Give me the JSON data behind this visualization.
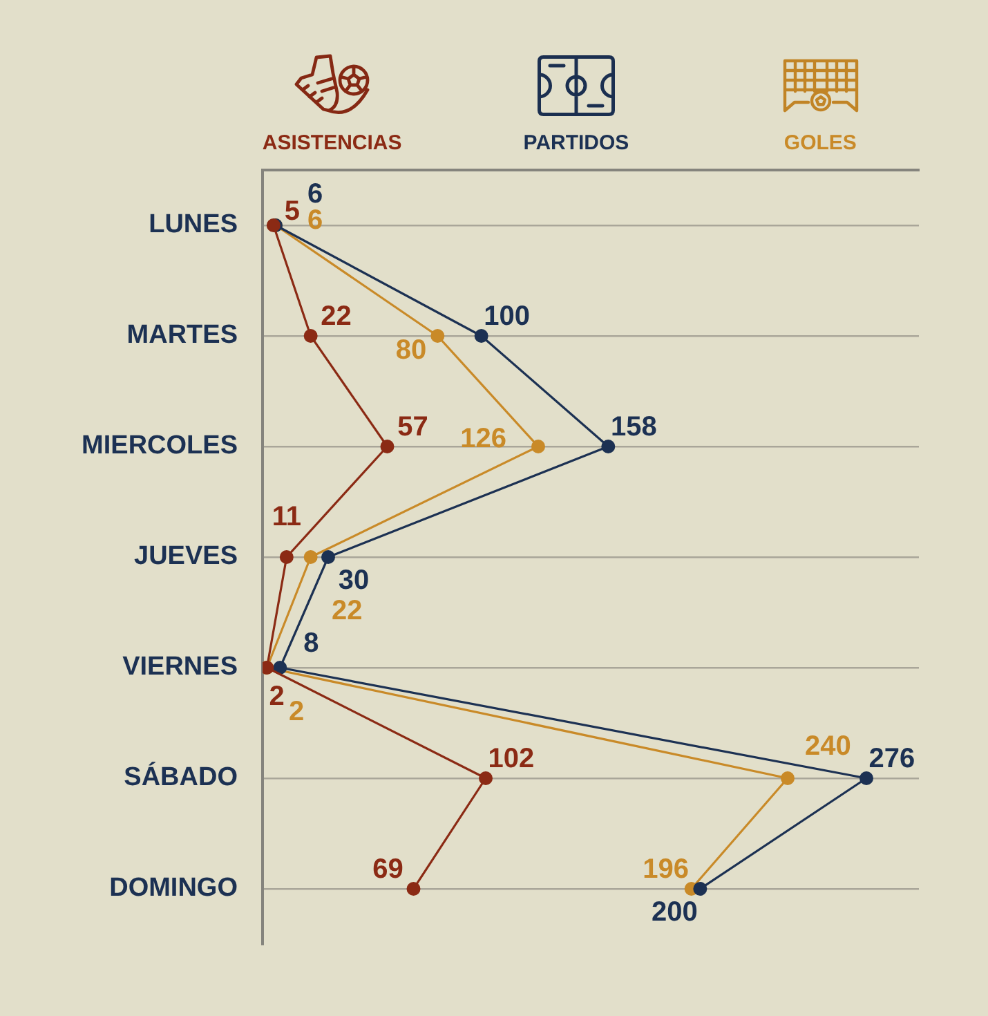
{
  "chart_data": {
    "type": "line",
    "orientation": "horizontal",
    "categories": [
      "LUNES",
      "MARTES",
      "MIERCOLES",
      "JUEVES",
      "VIERNES",
      "SÁBADO",
      "DOMINGO"
    ],
    "series": [
      {
        "name": "ASISTENCIAS",
        "color": "#8b2a14",
        "values": [
          5,
          22,
          57,
          11,
          2,
          102,
          69
        ]
      },
      {
        "name": "PARTIDOS",
        "color": "#1c3153",
        "values": [
          6,
          100,
          158,
          30,
          8,
          276,
          200
        ]
      },
      {
        "name": "GOLES",
        "color": "#c98a28",
        "values": [
          6,
          80,
          126,
          22,
          2,
          240,
          196
        ]
      }
    ],
    "xlim": [
      0,
      300
    ],
    "tick_labels": "y",
    "grid": "y",
    "legend": "top",
    "marker": "circle",
    "line_style": "solid",
    "data_labels": true
  }
}
